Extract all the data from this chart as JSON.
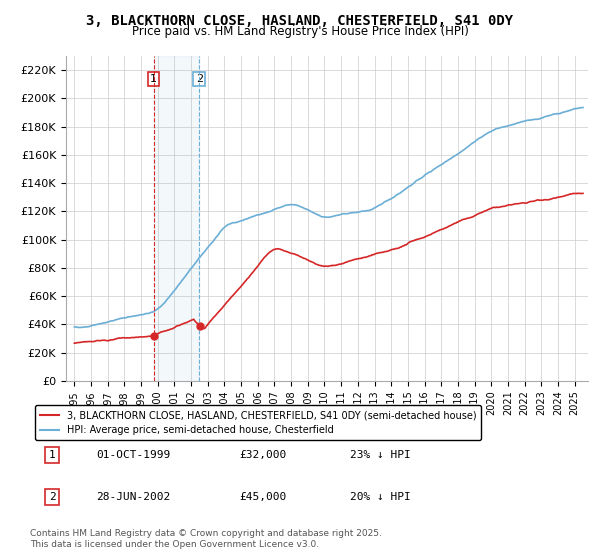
{
  "title": "3, BLACKTHORN CLOSE, HASLAND, CHESTERFIELD, S41 0DY",
  "subtitle": "Price paid vs. HM Land Registry's House Price Index (HPI)",
  "xlabel": "",
  "ylabel": "",
  "ylim": [
    0,
    230000
  ],
  "yticks": [
    0,
    20000,
    40000,
    60000,
    80000,
    100000,
    120000,
    140000,
    160000,
    180000,
    200000,
    220000
  ],
  "ytick_labels": [
    "£0",
    "£20K",
    "£40K",
    "£60K",
    "£80K",
    "£100K",
    "£120K",
    "£140K",
    "£160K",
    "£180K",
    "£200K",
    "£220K"
  ],
  "hpi_color": "#6baed6",
  "price_color": "#d62728",
  "marker1_date_num": 1999.75,
  "marker1_price": 32000,
  "marker2_date_num": 2002.49,
  "marker2_price": 45000,
  "legend_price_label": "3, BLACKTHORN CLOSE, HASLAND, CHESTERFIELD, S41 0DY (semi-detached house)",
  "legend_hpi_label": "HPI: Average price, semi-detached house, Chesterfield",
  "table_rows": [
    [
      "1",
      "01-OCT-1999",
      "£32,000",
      "23% ↓ HPI"
    ],
    [
      "2",
      "28-JUN-2002",
      "£45,000",
      "20% ↓ HPI"
    ]
  ],
  "footer": "Contains HM Land Registry data © Crown copyright and database right 2025.\nThis data is licensed under the Open Government Licence v3.0.",
  "bg_color": "#ffffff",
  "grid_color": "#cccccc"
}
